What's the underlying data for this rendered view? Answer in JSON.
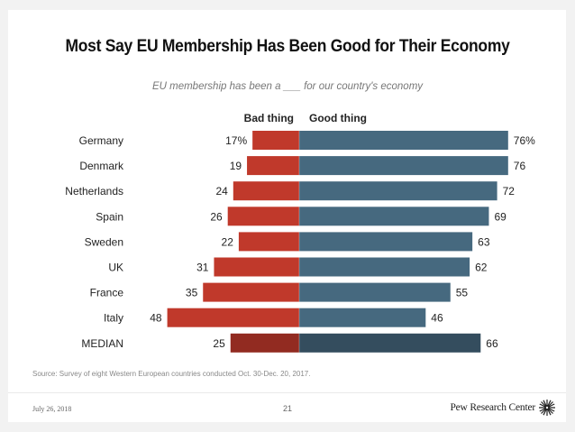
{
  "slide": {
    "source": "Source: Survey of eight Western European countries conducted Oct. 30-Dec. 20, 2017.",
    "date": "July 26, 2018",
    "page_number": "21",
    "logo_text": "Pew Research Center"
  },
  "chart_data": {
    "type": "bar",
    "orientation": "horizontal-diverging",
    "title": "Most Say EU Membership Has Been Good for Their Economy",
    "subtitle": "EU membership has been a ___ for our country's economy",
    "xlabel": "",
    "ylabel": "",
    "unit": "%",
    "categories": [
      "Germany",
      "Denmark",
      "Netherlands",
      "Spain",
      "Sweden",
      "UK",
      "France",
      "Italy",
      "MEDIAN"
    ],
    "series": [
      {
        "name": "Bad thing",
        "direction": "left",
        "color": "#c0392b",
        "median_color": "#922b21",
        "values": [
          17,
          19,
          24,
          26,
          22,
          31,
          35,
          48,
          25
        ],
        "labels": [
          "17%",
          "19",
          "24",
          "26",
          "22",
          "31",
          "35",
          "48",
          "25"
        ]
      },
      {
        "name": "Good thing",
        "direction": "right",
        "color": "#46697f",
        "median_color": "#344d5e",
        "values": [
          76,
          76,
          72,
          69,
          63,
          62,
          55,
          46,
          66
        ],
        "labels": [
          "76%",
          "76",
          "72",
          "69",
          "63",
          "62",
          "55",
          "46",
          "66"
        ]
      }
    ],
    "legend": [
      "Bad thing",
      "Good thing"
    ],
    "legend_position": "top-center",
    "grid": false
  }
}
